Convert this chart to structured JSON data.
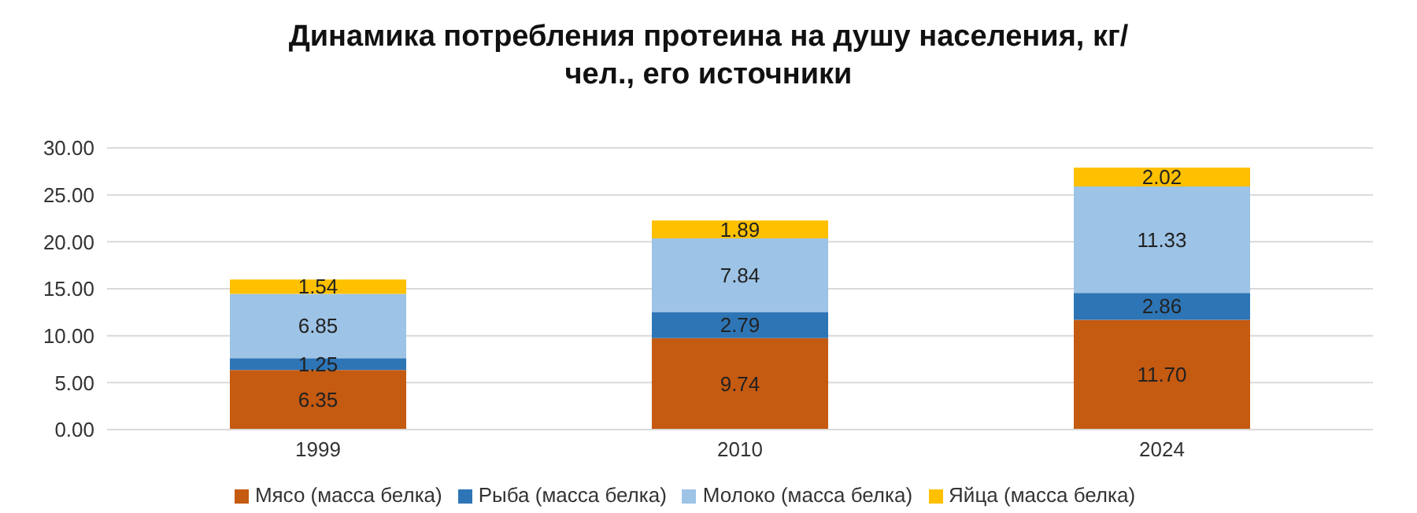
{
  "chart_data": {
    "type": "bar",
    "title": "Динамика потребления протеина на душу населения, кг/чел., его источники",
    "stacked": true,
    "categories": [
      "1999",
      "2010",
      "2024"
    ],
    "series": [
      {
        "name": "Мясо (масса белка)",
        "color": "#c55a11",
        "values": [
          6.35,
          9.74,
          11.7
        ],
        "value_labels": [
          "6.35",
          "9.74",
          "11.70"
        ]
      },
      {
        "name": "Рыба (масса белка)",
        "color": "#2e75b6",
        "values": [
          1.25,
          2.79,
          2.86
        ],
        "value_labels": [
          "1.25",
          "2.79",
          "2.86"
        ]
      },
      {
        "name": "Молоко (масса белка)",
        "color": "#9dc3e6",
        "values": [
          6.85,
          7.84,
          11.33
        ],
        "value_labels": [
          "6.85",
          "7.84",
          "11.33"
        ]
      },
      {
        "name": "Яйца (масса белка)",
        "color": "#ffc000",
        "values": [
          1.54,
          1.89,
          2.02
        ],
        "value_labels": [
          "1.54",
          "1.89",
          "2.02"
        ]
      }
    ],
    "ylim": [
      0,
      30
    ],
    "yticks": [
      {
        "value": 0,
        "label": "0.00"
      },
      {
        "value": 5,
        "label": "5.00"
      },
      {
        "value": 10,
        "label": "10.00"
      },
      {
        "value": 15,
        "label": "15.00"
      },
      {
        "value": 20,
        "label": "20.00"
      },
      {
        "value": 25,
        "label": "25.00"
      },
      {
        "value": 30,
        "label": "30.00"
      }
    ],
    "grid": "y",
    "legend": "bottom"
  }
}
